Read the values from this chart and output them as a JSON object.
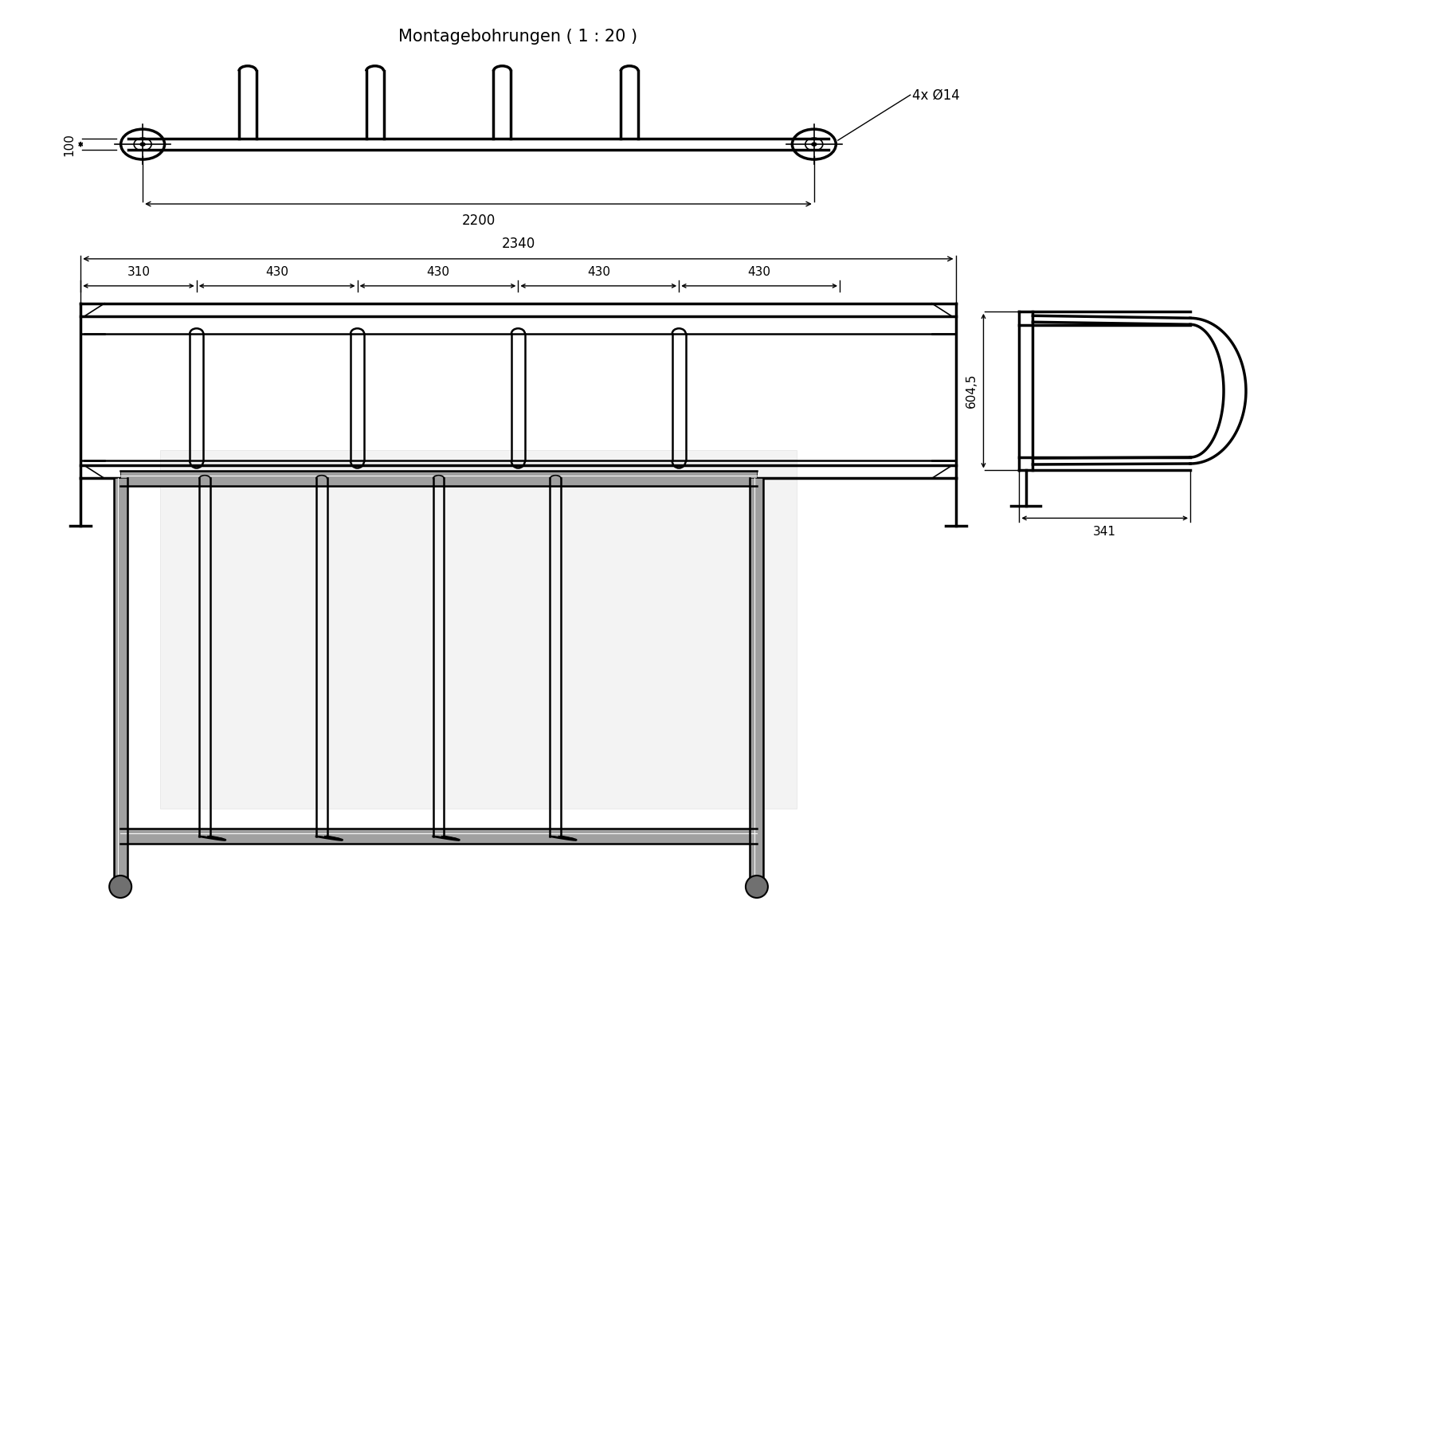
{
  "bg_color": "#ffffff",
  "line_color": "#000000",
  "title_top": "Montagebohrungen ( 1 : 20 )",
  "label_2200": "2200",
  "label_100": "100",
  "label_4x14": "4x Ø14",
  "label_2340": "2340",
  "label_310": "310",
  "label_430s": [
    "430",
    "430",
    "430",
    "430"
  ],
  "label_604": "604,5",
  "label_341": "341"
}
